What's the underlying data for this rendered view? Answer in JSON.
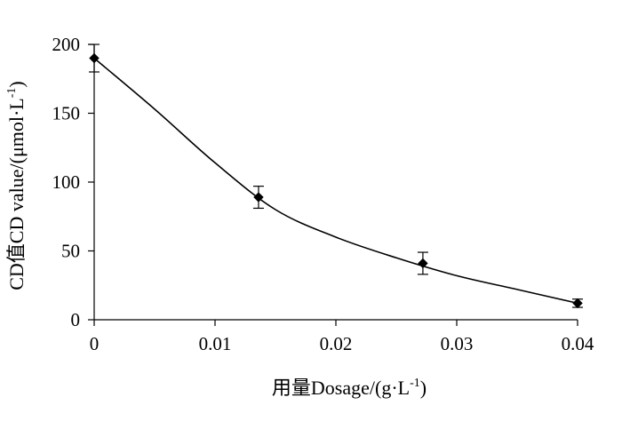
{
  "chart_data": {
    "type": "line",
    "title": "",
    "xlabel": {
      "main": "用量Dosage/(g·L",
      "sup": "-1",
      "close": ")"
    },
    "ylabel": {
      "main": "CD值CD value/(μmol·L",
      "sup": "-1",
      "close": ")"
    },
    "xlim": [
      0,
      0.04
    ],
    "ylim": [
      0,
      200
    ],
    "x_ticks": [
      0,
      0.01,
      0.02,
      0.03,
      0.04
    ],
    "x_tick_labels": [
      "0",
      "0.01",
      "0.02",
      "0.03",
      "0.04"
    ],
    "y_ticks": [
      0,
      50,
      100,
      150,
      200
    ],
    "y_tick_labels": [
      "0",
      "50",
      "100",
      "150",
      "200"
    ],
    "grid": false,
    "legend": "none",
    "series": [
      {
        "marker": "diamond",
        "color": "#000000",
        "points": [
          {
            "x": 0,
            "y": 190,
            "err": 10
          },
          {
            "x": 0.0136,
            "y": 89,
            "err": 8
          },
          {
            "x": 0.0272,
            "y": 41,
            "err": 8
          },
          {
            "x": 0.04,
            "y": 12,
            "err": 3
          }
        ]
      }
    ],
    "fit_curve": {
      "color": "#000000",
      "style": "smooth",
      "points": [
        {
          "x": 0,
          "y": 190
        },
        {
          "x": 0.005,
          "y": 153
        },
        {
          "x": 0.01,
          "y": 114
        },
        {
          "x": 0.015,
          "y": 80
        },
        {
          "x": 0.02,
          "y": 60
        },
        {
          "x": 0.025,
          "y": 45
        },
        {
          "x": 0.03,
          "y": 32
        },
        {
          "x": 0.035,
          "y": 22
        },
        {
          "x": 0.04,
          "y": 12
        }
      ]
    }
  }
}
